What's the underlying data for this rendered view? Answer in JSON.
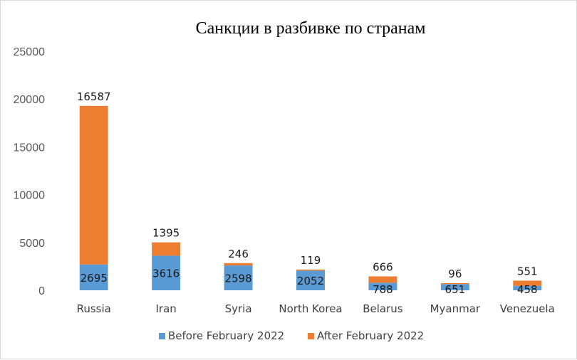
{
  "chart_data": {
    "type": "bar",
    "stacked": true,
    "title": "Санкции в разбивке по странам",
    "xlabel": "",
    "ylabel": "",
    "ylim": [
      0,
      25000
    ],
    "yticks": [
      "0",
      "5000",
      "10000",
      "15000",
      "20000",
      "25000"
    ],
    "grid": false,
    "legend_position": "bottom",
    "categories": [
      "Russia",
      "Iran",
      "Syria",
      "North Korea",
      "Belarus",
      "Myanmar",
      "Venezuela"
    ],
    "series": [
      {
        "name": "Before February 2022",
        "color": "#5b9bd5",
        "values": [
          2695,
          3616,
          2598,
          2052,
          788,
          651,
          458
        ]
      },
      {
        "name": "After February 2022",
        "color": "#ed7d31",
        "values": [
          16587,
          1395,
          246,
          119,
          666,
          96,
          551
        ]
      }
    ]
  }
}
